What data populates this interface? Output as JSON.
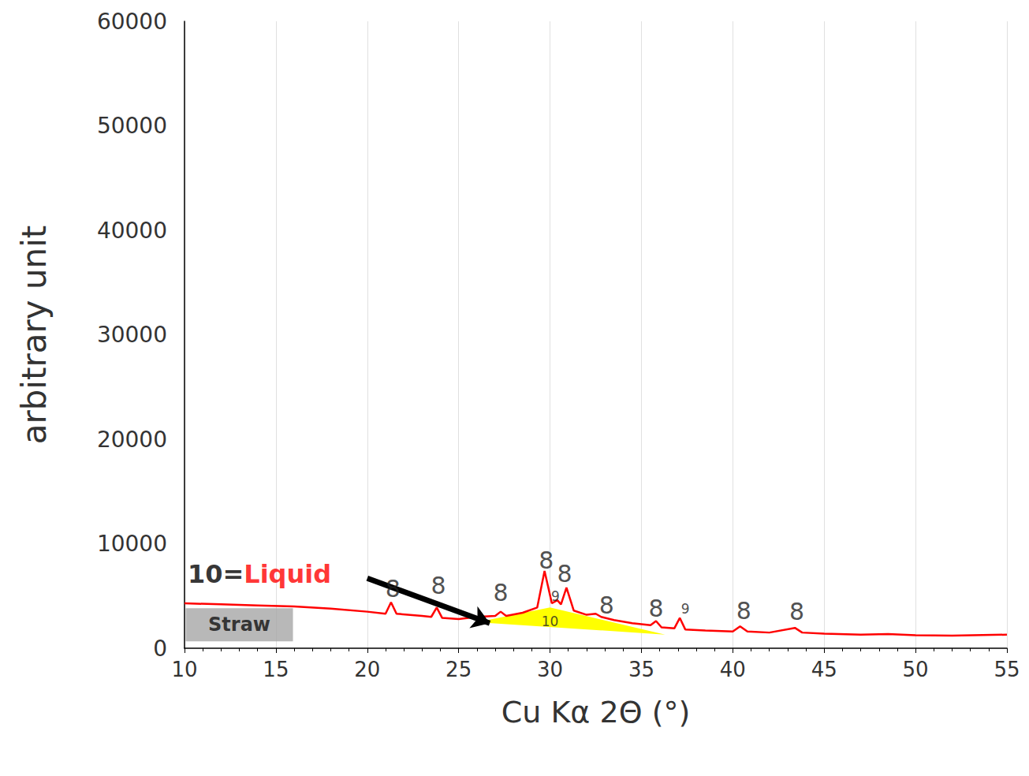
{
  "chart_data": {
    "type": "line",
    "x_label": "Cu Kα 2Θ (°)",
    "y_label": "arbitrary unit",
    "xlim": [
      10,
      55
    ],
    "xticks": [
      10,
      15,
      20,
      25,
      30,
      35,
      40,
      45,
      50,
      55
    ],
    "ylim": [
      0,
      60000
    ],
    "yticks": [
      0,
      10000,
      20000,
      30000,
      40000,
      50000,
      60000
    ],
    "grid": "x",
    "series": [
      {
        "name": "Straw",
        "color": "#ff0000",
        "x": [
          10,
          12,
          14,
          16,
          18,
          20,
          21,
          21.3,
          21.6,
          23,
          23.5,
          23.8,
          24.1,
          25,
          26,
          27,
          27.3,
          27.6,
          28.5,
          29.3,
          29.7,
          30.1,
          30.4,
          30.6,
          30.9,
          31.3,
          32,
          32.5,
          32.8,
          33.5,
          34.5,
          35.5,
          35.8,
          36.1,
          36.8,
          37.1,
          37.4,
          38.5,
          40,
          40.4,
          40.8,
          42,
          43.4,
          43.8,
          45,
          47,
          48.5,
          50,
          52,
          55
        ],
        "values": [
          4300,
          4200,
          4100,
          4000,
          3800,
          3500,
          3300,
          4400,
          3300,
          3100,
          3000,
          3900,
          2900,
          2800,
          3000,
          3100,
          3500,
          3100,
          3400,
          3900,
          7400,
          4300,
          4600,
          4200,
          5800,
          3600,
          3200,
          3300,
          3000,
          2700,
          2400,
          2200,
          2600,
          2000,
          1900,
          2900,
          1800,
          1700,
          1600,
          2100,
          1600,
          1500,
          1950,
          1500,
          1400,
          1300,
          1350,
          1250,
          1200,
          1300
        ]
      }
    ],
    "peak_labels": [
      {
        "text": "8",
        "x": 21.4,
        "y": 5700
      },
      {
        "text": "8",
        "x": 23.9,
        "y": 6000
      },
      {
        "text": "8",
        "x": 27.3,
        "y": 5300
      },
      {
        "text": "8",
        "x": 29.8,
        "y": 8400
      },
      {
        "text": "8",
        "x": 30.8,
        "y": 7100
      },
      {
        "text": "8",
        "x": 33.1,
        "y": 4100
      },
      {
        "text": "8",
        "x": 35.8,
        "y": 3800
      },
      {
        "text": "8",
        "x": 40.6,
        "y": 3600
      },
      {
        "text": "8",
        "x": 43.5,
        "y": 3500
      }
    ],
    "minor_labels": [
      {
        "text": "9",
        "x": 30.3,
        "y": 5000
      },
      {
        "text": "9",
        "x": 37.4,
        "y": 3800
      },
      {
        "text": "10",
        "x": 30.0,
        "y": 2600
      }
    ],
    "liquid_area": {
      "color": "#ffff00",
      "points": [
        [
          26,
          2500
        ],
        [
          30,
          3900
        ],
        [
          36.3,
          1300
        ]
      ]
    },
    "callout": {
      "parts": [
        "10=",
        "Liquid"
      ],
      "colors": [
        "#000000",
        "#ff0000"
      ],
      "x": 14.1,
      "y": 7100
    },
    "arrow": {
      "from": [
        20,
        6700
      ],
      "to": [
        26.7,
        2400
      ]
    },
    "series_tag": {
      "text": "Straw",
      "color": "#a6a6a6",
      "x": 13,
      "y": 2250
    }
  }
}
